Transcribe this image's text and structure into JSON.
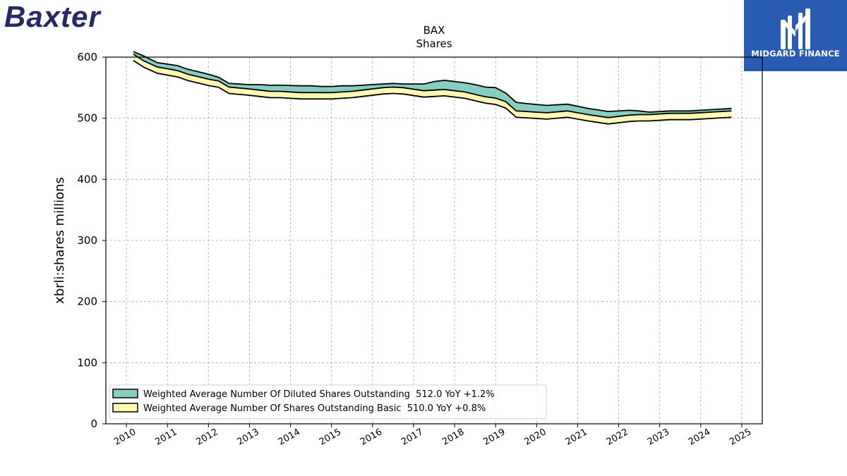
{
  "brand": {
    "logo_text": "Baxter",
    "color": "#252a66"
  },
  "partner": {
    "name": "MIDGARD FINANCE",
    "background": "#2a5bb3",
    "icon": "midgard-monogram-icon"
  },
  "chart_data": {
    "type": "area",
    "title": "BAX",
    "subtitle": "Shares",
    "ylabel": "xbrli:shares millions",
    "xlabel": "",
    "ylim": [
      0,
      600
    ],
    "xlim": [
      2009.5,
      2025.5
    ],
    "yticks": [
      0,
      100,
      200,
      300,
      400,
      500,
      600
    ],
    "xticks": [
      "2010",
      "2011",
      "2012",
      "2013",
      "2014",
      "2015",
      "2016",
      "2017",
      "2018",
      "2019",
      "2020",
      "2021",
      "2022",
      "2023",
      "2024",
      "2025"
    ],
    "grid": true,
    "legend_position": "bottom-left",
    "x": [
      2010.17,
      2010.42,
      2010.75,
      2011.25,
      2011.5,
      2012.0,
      2012.25,
      2012.5,
      2013.0,
      2013.25,
      2013.5,
      2013.75,
      2014.25,
      2014.5,
      2014.75,
      2015.0,
      2015.25,
      2015.5,
      2015.75,
      2016.25,
      2016.5,
      2016.75,
      2017.25,
      2017.5,
      2017.75,
      2018.25,
      2018.5,
      2018.75,
      2019.0,
      2019.25,
      2019.5,
      2019.75,
      2020.25,
      2020.75,
      2021.25,
      2021.75,
      2022.25,
      2022.5,
      2022.75,
      2023.25,
      2023.75,
      2024.25,
      2024.5,
      2024.75
    ],
    "series": [
      {
        "name": "Weighted Average Number Of Diluted Shares Outstanding  512.0 YoY +1.2%",
        "color": "#86cfc0",
        "values": [
          609,
          602,
          591,
          586,
          580,
          572,
          567,
          557,
          555,
          555,
          554,
          554,
          553,
          553,
          552,
          552,
          553,
          553,
          554,
          556,
          557,
          556,
          556,
          560,
          562,
          558,
          555,
          551,
          550,
          541,
          526,
          524,
          521,
          523,
          516,
          511,
          513,
          512,
          510,
          512,
          512,
          514,
          515,
          516
        ]
      },
      {
        "name": "Weighted Average Number Of Shares Outstanding Basic  510.0 YoY +0.8%",
        "color": "#fff9b4",
        "values": [
          605,
          594,
          584,
          578,
          572,
          564,
          561,
          551,
          548,
          546,
          544,
          544,
          542,
          542,
          542,
          542,
          543,
          544,
          546,
          550,
          551,
          550,
          545,
          546,
          547,
          543,
          539,
          535,
          533,
          527,
          512,
          511,
          509,
          512,
          506,
          501,
          505,
          506,
          506,
          508,
          508,
          510,
          511,
          512
        ]
      }
    ]
  }
}
